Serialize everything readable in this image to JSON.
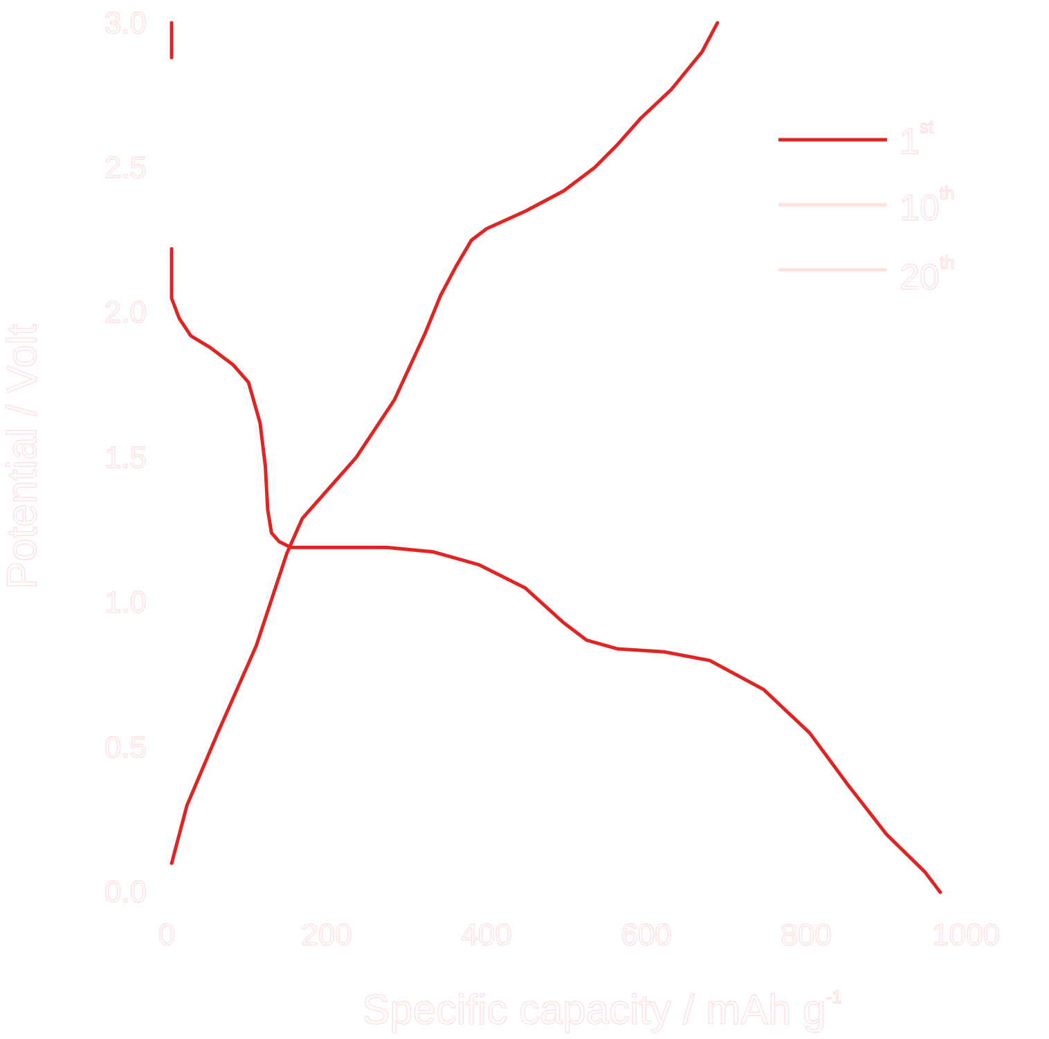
{
  "colors": {
    "text": "#fde0e0",
    "series_1st": "#e02424",
    "series_10th": "#fde0e0",
    "series_20th": "#fde0e0"
  },
  "chart_data": {
    "type": "line",
    "xlabel": "Specific capacity / mAh g",
    "xlabel_sup": "-1",
    "ylabel": "Potential / Volt",
    "xlim": [
      0,
      1000
    ],
    "ylim": [
      0.0,
      3.0
    ],
    "xticks": [
      "0",
      "200",
      "400",
      "600",
      "800",
      "1000"
    ],
    "yticks": [
      "0.0",
      "0.5",
      "1.0",
      "1.5",
      "2.0",
      "2.5",
      "3.0"
    ],
    "legend_position": "top-right",
    "legend": [
      {
        "num": "1",
        "sup": "st"
      },
      {
        "num": "10",
        "sup": "th"
      },
      {
        "num": "20",
        "sup": "th"
      }
    ],
    "series": [
      {
        "name": "1st",
        "segments": [
          {
            "role": "discharge",
            "points": [
              [
                0,
                3.0
              ],
              [
                0,
                2.88
              ]
            ]
          },
          {
            "role": "discharge",
            "points": [
              [
                0,
                2.22
              ],
              [
                0,
                2.05
              ],
              [
                10,
                1.98
              ],
              [
                25,
                1.92
              ],
              [
                50,
                1.88
              ],
              [
                80,
                1.82
              ],
              [
                100,
                1.76
              ],
              [
                115,
                1.62
              ],
              [
                122,
                1.47
              ],
              [
                125,
                1.32
              ],
              [
                130,
                1.24
              ],
              [
                140,
                1.21
              ],
              [
                155,
                1.19
              ],
              [
                200,
                1.19
              ],
              [
                280,
                1.19
              ],
              [
                340,
                1.175
              ],
              [
                400,
                1.13
              ],
              [
                460,
                1.05
              ],
              [
                510,
                0.93
              ],
              [
                540,
                0.87
              ],
              [
                580,
                0.84
              ],
              [
                640,
                0.83
              ],
              [
                700,
                0.8
              ],
              [
                770,
                0.7
              ],
              [
                830,
                0.55
              ],
              [
                880,
                0.37
              ],
              [
                930,
                0.2
              ],
              [
                980,
                0.07
              ],
              [
                1000,
                0.0
              ]
            ]
          },
          {
            "role": "charge",
            "points": [
              [
                0,
                0.1
              ],
              [
                20,
                0.3
              ],
              [
                60,
                0.55
              ],
              [
                110,
                0.85
              ],
              [
                150,
                1.17
              ],
              [
                170,
                1.29
              ],
              [
                200,
                1.38
              ],
              [
                240,
                1.5
              ],
              [
                290,
                1.7
              ],
              [
                330,
                1.93
              ],
              [
                350,
                2.06
              ],
              [
                370,
                2.16
              ],
              [
                390,
                2.25
              ],
              [
                410,
                2.29
              ],
              [
                460,
                2.35
              ],
              [
                510,
                2.42
              ],
              [
                550,
                2.5
              ],
              [
                580,
                2.58
              ],
              [
                610,
                2.67
              ],
              [
                650,
                2.77
              ],
              [
                690,
                2.9
              ],
              [
                710,
                3.0
              ]
            ]
          }
        ]
      },
      {
        "name": "10th",
        "segments": []
      },
      {
        "name": "20th",
        "segments": []
      }
    ]
  }
}
